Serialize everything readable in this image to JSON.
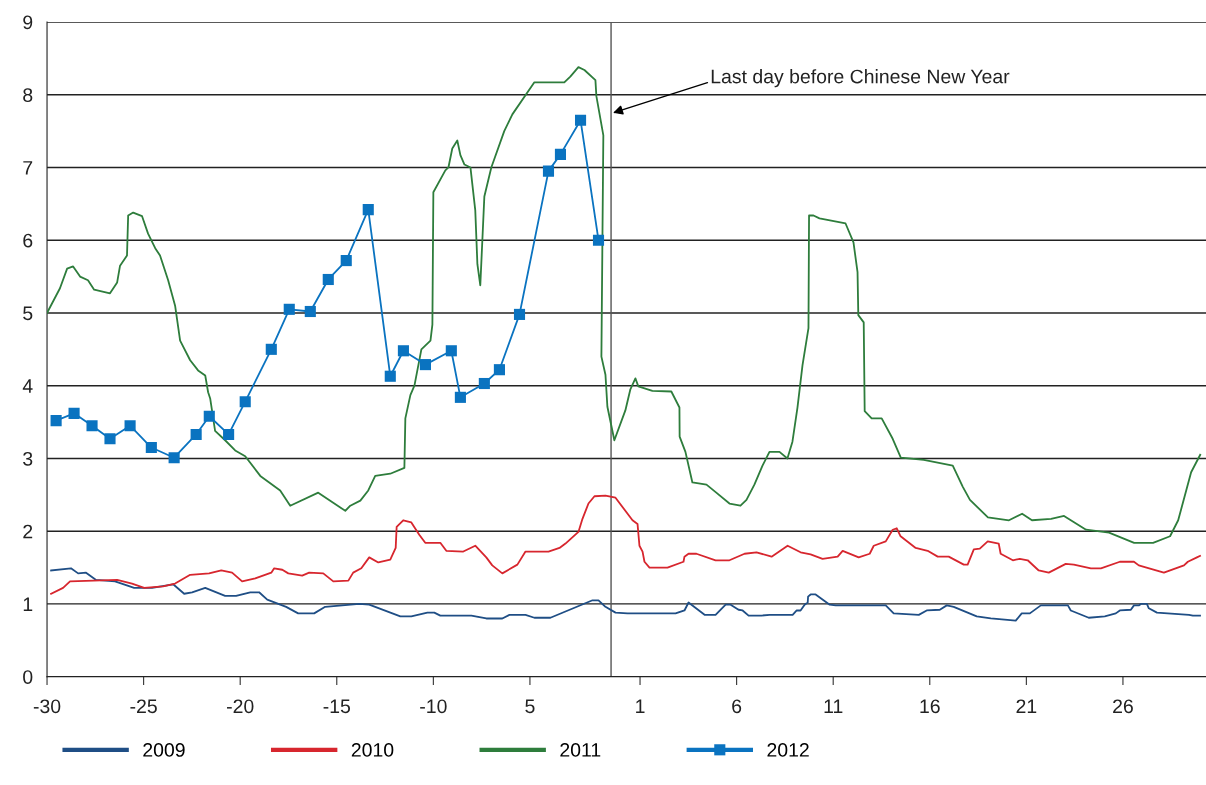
{
  "chart_data": {
    "type": "line",
    "xlim": [
      -30,
      30
    ],
    "ylim": [
      0,
      9
    ],
    "xticks": [
      -30,
      -25,
      -20,
      -15,
      -10,
      {
        "value": -5,
        "label": "5"
      },
      {
        "value": 0.7,
        "label": "1"
      },
      {
        "value": 5.7,
        "label": "6"
      },
      {
        "value": 10.7,
        "label": "11"
      },
      {
        "value": 15.7,
        "label": "16"
      },
      {
        "value": 20.7,
        "label": "21"
      },
      {
        "value": 25.7,
        "label": "26"
      }
    ],
    "yticks": [
      0,
      1,
      2,
      3,
      4,
      5,
      6,
      7,
      8,
      9
    ],
    "grid": "y",
    "legend": "bottom",
    "line_style": "solid",
    "ref_lines": [
      {
        "axis": "x",
        "value": -0.8,
        "color": "#555555"
      }
    ],
    "annotations": [
      {
        "text": "Last day before Chinese New Year",
        "x": -0.7,
        "y": 7.75
      }
    ],
    "series": [
      {
        "name": "2009",
        "color": "#1f4e85",
        "marker": "none",
        "x": [
          -29.79,
          -28.76,
          -28.39,
          -27.98,
          -27.46,
          -26.48,
          -25.49,
          -24.56,
          -23.47,
          -22.9,
          -22.49,
          -21.81,
          -20.78,
          -20.21,
          -19.48,
          -19.02,
          -18.6,
          -17.62,
          -17.0,
          -16.17,
          -15.6,
          -13.84,
          -13.32,
          -11.71,
          -11.14,
          -10.31,
          -9.95,
          -9.64,
          -8.03,
          -7.26,
          -6.43,
          -6.06,
          -5.23,
          -4.77,
          -3.94,
          -1.76,
          -1.45,
          -1.09,
          -0.57,
          0.05,
          2.54,
          3.0,
          3.21,
          4.04,
          4.61,
          5.13,
          5.39,
          5.8,
          6.01,
          6.32,
          6.99,
          7.41,
          8.6,
          8.81,
          9.01,
          9.22,
          9.38,
          9.4,
          9.53,
          9.79,
          10.52,
          10.83,
          13.42,
          13.83,
          15.13,
          15.54,
          16.22,
          16.58,
          16.94,
          18.13,
          18.86,
          20.15,
          20.46,
          20.88,
          21.45,
          22.85,
          23.0,
          23.93,
          24.76,
          25.33,
          25.54,
          26.11,
          26.27,
          26.52,
          26.63,
          26.94,
          27.04,
          27.46,
          29.12,
          29.32,
          29.69
        ],
        "values": [
          1.46,
          1.49,
          1.42,
          1.43,
          1.33,
          1.31,
          1.22,
          1.22,
          1.27,
          1.14,
          1.16,
          1.22,
          1.11,
          1.11,
          1.16,
          1.16,
          1.06,
          0.96,
          0.87,
          0.87,
          0.96,
          1.0,
          0.99,
          0.83,
          0.83,
          0.88,
          0.88,
          0.84,
          0.84,
          0.8,
          0.8,
          0.85,
          0.85,
          0.81,
          0.81,
          1.05,
          1.05,
          0.96,
          0.88,
          0.87,
          0.87,
          0.91,
          1.02,
          0.85,
          0.85,
          0.99,
          0.99,
          0.92,
          0.91,
          0.84,
          0.84,
          0.85,
          0.85,
          0.91,
          0.91,
          0.99,
          1.02,
          1.1,
          1.13,
          1.13,
          0.99,
          0.98,
          0.98,
          0.87,
          0.85,
          0.91,
          0.92,
          0.98,
          0.96,
          0.83,
          0.8,
          0.77,
          0.87,
          0.87,
          0.98,
          0.98,
          0.91,
          0.81,
          0.83,
          0.87,
          0.91,
          0.92,
          0.98,
          0.98,
          1.0,
          1.0,
          0.94,
          0.88,
          0.85,
          0.84,
          0.84
        ]
      },
      {
        "name": "2010",
        "color": "#d7262e",
        "marker": "none",
        "x": [
          -29.79,
          -29.17,
          -28.81,
          -26.37,
          -25.6,
          -24.97,
          -23.99,
          -23.37,
          -22.59,
          -21.61,
          -20.98,
          -20.42,
          -19.9,
          -19.22,
          -18.39,
          -18.24,
          -17.82,
          -17.51,
          -16.79,
          -16.43,
          -15.7,
          -15.18,
          -14.4,
          -14.15,
          -13.73,
          -13.32,
          -12.85,
          -12.23,
          -11.95,
          -11.9,
          -11.56,
          -11.14,
          -10.73,
          -10.42,
          -9.64,
          -9.33,
          -8.45,
          -7.83,
          -7.26,
          -6.95,
          -6.43,
          -5.65,
          -5.23,
          -4.04,
          -3.47,
          -3.16,
          -2.49,
          -2.28,
          -1.97,
          -1.66,
          -1.09,
          -0.57,
          0.31,
          0.57,
          0.67,
          0.83,
          0.93,
          1.19,
          2.12,
          2.95,
          3.0,
          3.21,
          3.62,
          4.61,
          5.33,
          6.11,
          6.73,
          7.51,
          8.34,
          9.01,
          9.53,
          10.15,
          10.93,
          11.19,
          12.02,
          12.59,
          12.8,
          13.42,
          13.78,
          13.99,
          14.19,
          14.97,
          15.59,
          16.11,
          16.68,
          17.46,
          17.66,
          17.98,
          18.29,
          18.7,
          19.27,
          19.37,
          20.0,
          20.36,
          20.77,
          21.34,
          21.86,
          22.74,
          23.16,
          24.04,
          24.56,
          25.54,
          26.27,
          26.52,
          27.82,
          28.86,
          29.06,
          29.53,
          29.69
        ],
        "values": [
          1.14,
          1.22,
          1.31,
          1.33,
          1.28,
          1.22,
          1.24,
          1.28,
          1.4,
          1.42,
          1.46,
          1.43,
          1.31,
          1.35,
          1.43,
          1.49,
          1.47,
          1.42,
          1.39,
          1.43,
          1.42,
          1.31,
          1.32,
          1.43,
          1.49,
          1.64,
          1.57,
          1.61,
          1.77,
          2.06,
          2.15,
          2.12,
          1.95,
          1.84,
          1.84,
          1.73,
          1.72,
          1.8,
          1.64,
          1.53,
          1.42,
          1.54,
          1.72,
          1.72,
          1.77,
          1.83,
          1.99,
          2.17,
          2.38,
          2.48,
          2.49,
          2.46,
          2.15,
          2.1,
          1.8,
          1.72,
          1.58,
          1.5,
          1.5,
          1.58,
          1.65,
          1.69,
          1.69,
          1.6,
          1.6,
          1.69,
          1.71,
          1.65,
          1.8,
          1.71,
          1.68,
          1.62,
          1.65,
          1.73,
          1.64,
          1.69,
          1.8,
          1.86,
          2.02,
          2.04,
          1.93,
          1.77,
          1.73,
          1.65,
          1.65,
          1.54,
          1.54,
          1.75,
          1.76,
          1.86,
          1.83,
          1.69,
          1.6,
          1.62,
          1.6,
          1.46,
          1.43,
          1.55,
          1.54,
          1.49,
          1.49,
          1.58,
          1.58,
          1.53,
          1.43,
          1.53,
          1.58,
          1.64,
          1.66
        ]
      },
      {
        "name": "2011",
        "color": "#2e7d3c",
        "marker": "none",
        "x": [
          -30.0,
          -29.33,
          -28.96,
          -28.65,
          -28.29,
          -27.88,
          -27.56,
          -26.74,
          -26.37,
          -26.22,
          -25.86,
          -25.8,
          -25.54,
          -25.08,
          -24.77,
          -24.4,
          -24.15,
          -23.73,
          -23.37,
          -23.11,
          -22.59,
          -22.18,
          -21.81,
          -21.66,
          -21.55,
          -21.3,
          -20.78,
          -20.26,
          -19.74,
          -18.96,
          -17.93,
          -17.41,
          -15.96,
          -14.56,
          -14.3,
          -13.78,
          -13.37,
          -13.01,
          -12.23,
          -11.5,
          -11.45,
          -11.19,
          -10.98,
          -10.62,
          -10.15,
          -10.05,
          -10.0,
          -9.38,
          -9.22,
          -9.02,
          -8.76,
          -8.6,
          -8.39,
          -8.08,
          -7.83,
          -7.72,
          -7.57,
          -7.36,
          -7.0,
          -6.33,
          -5.91,
          -4.77,
          -3.22,
          -2.91,
          -2.49,
          -2.18,
          -1.61,
          -1.56,
          -1.2,
          -1.3,
          -1.09,
          -0.99,
          -0.63,
          -0.06,
          0.2,
          0.46,
          0.61,
          1.34,
          2.32,
          2.74,
          2.75,
          3.05,
          3.41,
          4.14,
          4.6,
          5.33,
          5.9,
          6.21,
          6.62,
          7.04,
          7.4,
          7.92,
          8.33,
          8.59,
          8.85,
          9.11,
          9.42,
          9.45,
          9.68,
          9.99,
          11.34,
          11.75,
          11.96,
          12.0,
          12.28,
          12.33,
          12.69,
          13.21,
          13.78,
          14.2,
          15.39,
          16.89,
          17.41,
          17.78,
          18.71,
          19.8,
          20.48,
          20.99,
          21.98,
          22.65,
          23.79,
          24.98,
          26.28,
          27.26,
          28.14,
          28.56,
          29.23,
          29.7
        ],
        "values": [
          5.0,
          5.34,
          5.61,
          5.64,
          5.5,
          5.45,
          5.32,
          5.27,
          5.42,
          5.65,
          5.79,
          6.34,
          6.38,
          6.33,
          6.09,
          5.89,
          5.79,
          5.45,
          5.1,
          4.62,
          4.35,
          4.21,
          4.14,
          3.91,
          3.82,
          3.38,
          3.25,
          3.11,
          3.03,
          2.76,
          2.56,
          2.35,
          2.53,
          2.28,
          2.35,
          2.42,
          2.56,
          2.76,
          2.79,
          2.87,
          3.55,
          3.87,
          4.0,
          4.5,
          4.62,
          4.84,
          6.66,
          6.96,
          7.0,
          7.26,
          7.37,
          7.17,
          7.04,
          7.0,
          6.41,
          5.67,
          5.38,
          6.6,
          7.0,
          7.5,
          7.73,
          8.17,
          8.17,
          8.25,
          8.38,
          8.34,
          8.2,
          7.98,
          7.44,
          4.4,
          4.15,
          3.71,
          3.25,
          3.66,
          3.95,
          4.1,
          3.99,
          3.93,
          3.92,
          3.7,
          3.3,
          3.09,
          2.67,
          2.64,
          2.54,
          2.38,
          2.35,
          2.43,
          2.64,
          2.9,
          3.09,
          3.09,
          3.0,
          3.23,
          3.7,
          4.28,
          4.79,
          6.34,
          6.34,
          6.3,
          6.23,
          5.97,
          5.56,
          4.97,
          4.87,
          3.65,
          3.55,
          3.55,
          3.27,
          3.01,
          2.98,
          2.9,
          2.61,
          2.43,
          2.19,
          2.15,
          2.24,
          2.15,
          2.17,
          2.21,
          2.02,
          1.98,
          1.84,
          1.84,
          1.93,
          2.15,
          2.81,
          3.05
        ]
      },
      {
        "name": "2012",
        "color": "#0a73c0",
        "marker": "square",
        "x": [
          -29.53,
          -28.6,
          -27.67,
          -26.74,
          -25.7,
          -24.6,
          -23.42,
          -22.28,
          -21.6,
          -20.6,
          -19.74,
          -18.39,
          -17.46,
          -16.37,
          -15.44,
          -14.51,
          -13.37,
          -12.23,
          -11.55,
          -10.41,
          -9.07,
          -8.6,
          -7.36,
          -6.58,
          -5.54,
          -4.04,
          -3.42,
          -2.38,
          -1.45
        ],
        "values": [
          3.52,
          3.62,
          3.45,
          3.27,
          3.45,
          3.15,
          3.01,
          3.33,
          3.58,
          3.33,
          3.78,
          4.5,
          5.05,
          5.02,
          5.46,
          5.72,
          6.42,
          4.13,
          4.48,
          4.29,
          4.48,
          3.84,
          4.03,
          4.22,
          4.98,
          6.95,
          7.18,
          7.65,
          6.0
        ]
      }
    ]
  }
}
